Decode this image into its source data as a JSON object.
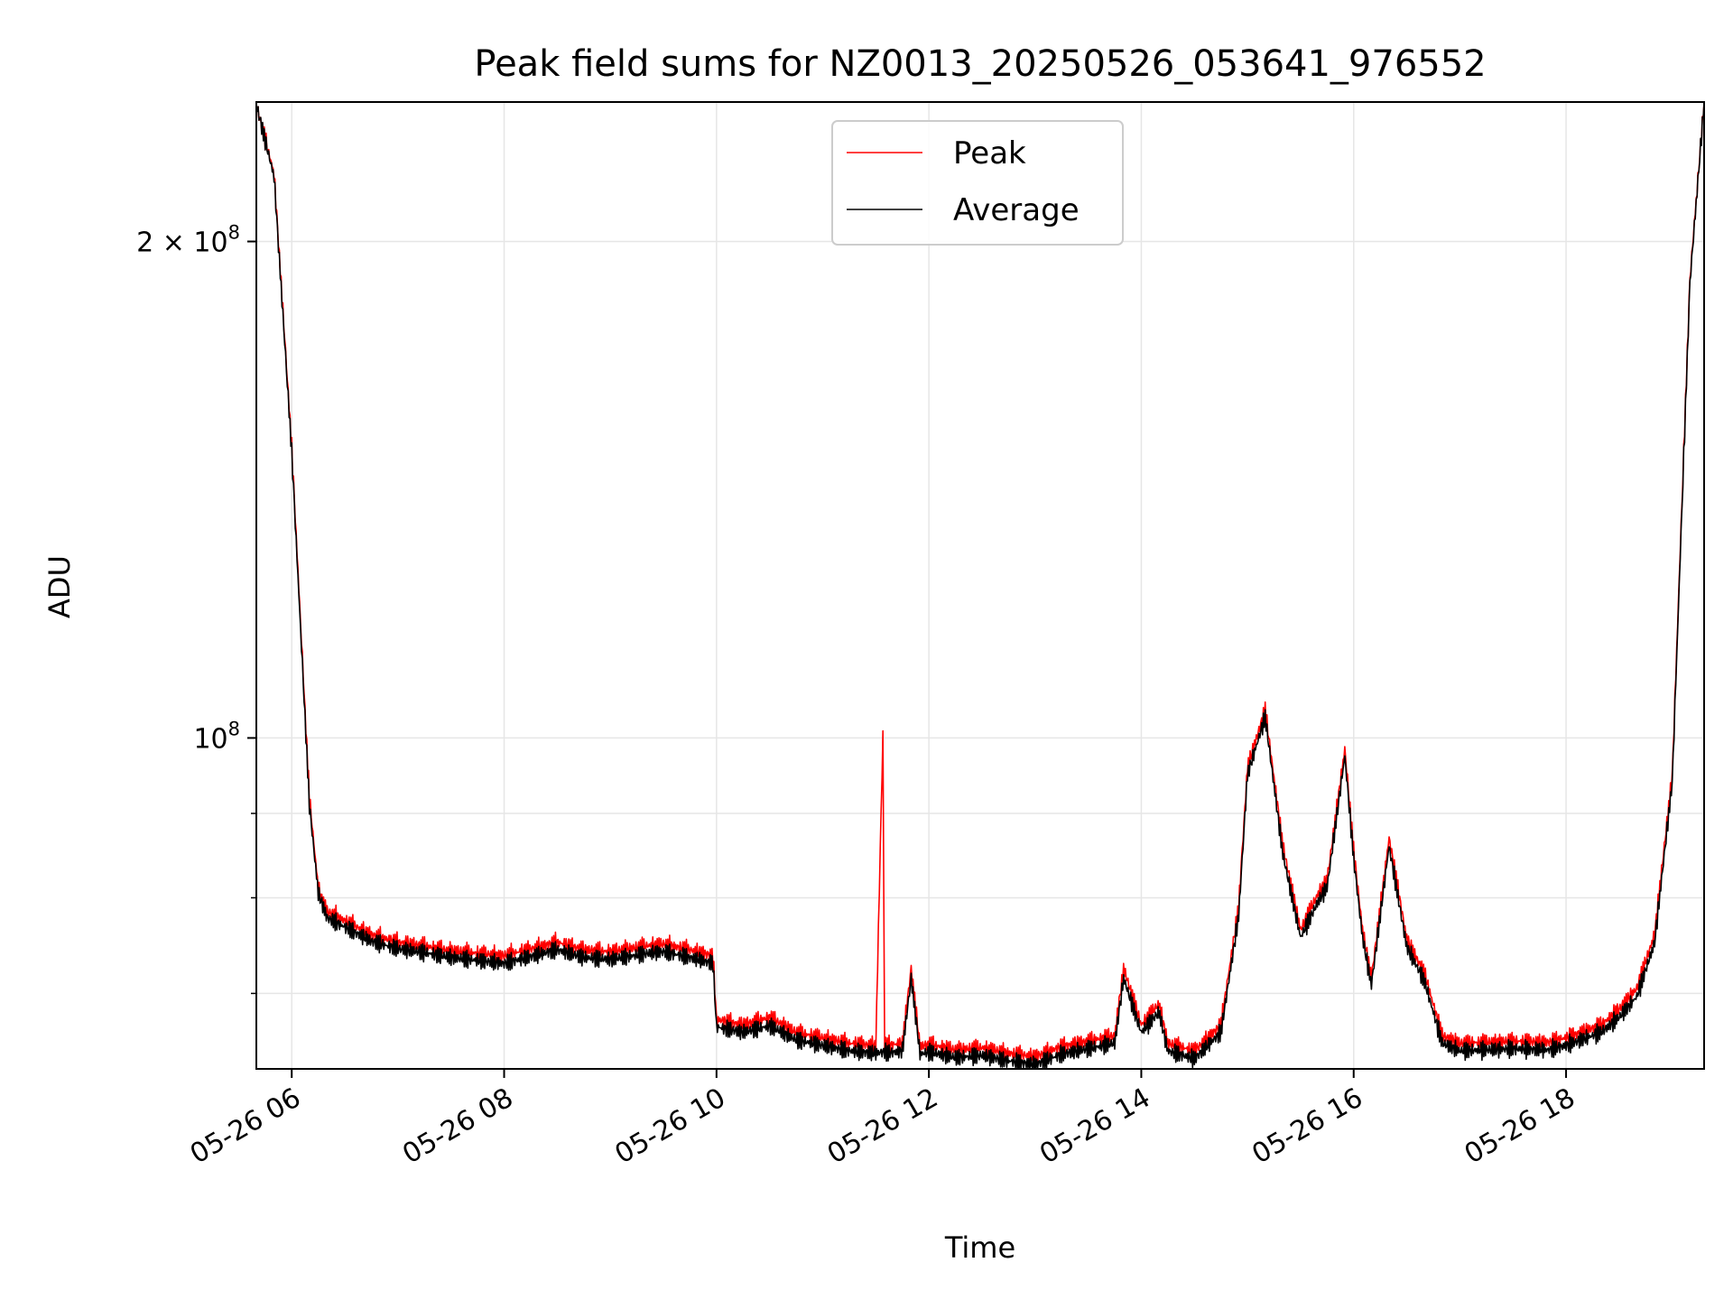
{
  "chart_data": {
    "type": "line",
    "title": "Peak field sums for NZ0013_20250526_053641_976552",
    "xlabel": "Time",
    "ylabel": "ADU",
    "y_scale": "log",
    "grid": true,
    "legend_position": "top-center",
    "xlim": [
      "05-26 05:40",
      "05-26 19:18"
    ],
    "ylim": [
      63000000,
      243000000
    ],
    "x_ticks": [
      "05-26 06",
      "05-26 08",
      "05-26 10",
      "05-26 12",
      "05-26 14",
      "05-26 16",
      "05-26 18"
    ],
    "y_tick_labels": [
      {
        "value": 200000000,
        "base": "2 × 10",
        "exp": "8"
      },
      {
        "value": 100000000,
        "base": "10",
        "exp": "8"
      }
    ],
    "y_minor_ticks": [
      70000000,
      80000000,
      90000000
    ],
    "series": [
      {
        "name": "Peak",
        "color": "#ff0000",
        "x": [
          "05:40",
          "05:50",
          "06:00",
          "06:10",
          "06:15",
          "06:20",
          "06:30",
          "06:45",
          "07:00",
          "07:15",
          "07:30",
          "08:00",
          "08:30",
          "08:45",
          "09:00",
          "09:20",
          "09:30",
          "09:45",
          "09:58",
          "10:00",
          "10:15",
          "10:30",
          "10:45",
          "11:00",
          "11:15",
          "11:30",
          "11:34",
          "11:35",
          "11:36",
          "11:45",
          "11:50",
          "11:55",
          "12:00",
          "12:15",
          "12:30",
          "12:45",
          "13:00",
          "13:15",
          "13:30",
          "13:45",
          "13:50",
          "14:00",
          "14:10",
          "14:15",
          "14:30",
          "14:45",
          "14:55",
          "15:00",
          "15:10",
          "15:20",
          "15:30",
          "15:40",
          "15:45",
          "15:55",
          "16:00",
          "16:05",
          "16:10",
          "16:20",
          "16:30",
          "16:40",
          "16:50",
          "17:00",
          "17:30",
          "17:50",
          "18:00",
          "18:20",
          "18:30",
          "18:40",
          "18:50",
          "19:00",
          "19:10",
          "19:18"
        ],
        "y": [
          242000000,
          220000000,
          150000000,
          92000000,
          81000000,
          78500000,
          77500000,
          76000000,
          75200000,
          74800000,
          74300000,
          73800000,
          75200000,
          74400000,
          74200000,
          74800000,
          75000000,
          74400000,
          73800000,
          67500000,
          67000000,
          67700000,
          66300000,
          65800000,
          65300000,
          65100000,
          100500000,
          65300000,
          65100000,
          65300000,
          72500000,
          65000000,
          65200000,
          64700000,
          64900000,
          64400000,
          64100000,
          65000000,
          65500000,
          66000000,
          72500000,
          67000000,
          69000000,
          65300000,
          64600000,
          67000000,
          79000000,
          96000000,
          104000000,
          86000000,
          76500000,
          80500000,
          82000000,
          98500000,
          85500000,
          76500000,
          71500000,
          87000000,
          75500000,
          72000000,
          66000000,
          65300000,
          65500000,
          65400000,
          65800000,
          67000000,
          68500000,
          70500000,
          76000000,
          95000000,
          190000000,
          243000000
        ]
      },
      {
        "name": "Average",
        "color": "#000000",
        "x": [
          "05:40",
          "05:50",
          "06:00",
          "06:10",
          "06:15",
          "06:20",
          "06:30",
          "06:45",
          "07:00",
          "07:15",
          "07:30",
          "08:00",
          "08:30",
          "08:45",
          "09:00",
          "09:20",
          "09:30",
          "09:45",
          "09:58",
          "10:00",
          "10:15",
          "10:30",
          "10:45",
          "11:00",
          "11:15",
          "11:30",
          "11:34",
          "11:35",
          "11:36",
          "11:45",
          "11:50",
          "11:55",
          "12:00",
          "12:15",
          "12:30",
          "12:45",
          "13:00",
          "13:15",
          "13:30",
          "13:45",
          "13:50",
          "14:00",
          "14:10",
          "14:15",
          "14:30",
          "14:45",
          "14:55",
          "15:00",
          "15:10",
          "15:20",
          "15:30",
          "15:40",
          "15:45",
          "15:55",
          "16:00",
          "16:05",
          "16:10",
          "16:20",
          "16:30",
          "16:40",
          "16:50",
          "17:00",
          "17:30",
          "17:50",
          "18:00",
          "18:20",
          "18:30",
          "18:40",
          "18:50",
          "19:00",
          "19:10",
          "19:18"
        ],
        "y": [
          242000000,
          219000000,
          149000000,
          91000000,
          80500000,
          77800000,
          76800000,
          75300000,
          74500000,
          74100000,
          73600000,
          73000000,
          74400000,
          73600000,
          73400000,
          74000000,
          74200000,
          73600000,
          73000000,
          66800000,
          66300000,
          66900000,
          65600000,
          65100000,
          64600000,
          64400000,
          64500000,
          64600000,
          64400000,
          64600000,
          71500000,
          64300000,
          64500000,
          64000000,
          64200000,
          63700000,
          63400000,
          64300000,
          64800000,
          65300000,
          71500000,
          66300000,
          68200000,
          64600000,
          63900000,
          66300000,
          78000000,
          95000000,
          103000000,
          85000000,
          75700000,
          79600000,
          81200000,
          97500000,
          84500000,
          75700000,
          70800000,
          86000000,
          74700000,
          71200000,
          65300000,
          64600000,
          64800000,
          64700000,
          65100000,
          66300000,
          67700000,
          69700000,
          75100000,
          94000000,
          189000000,
          243000000
        ]
      }
    ]
  }
}
